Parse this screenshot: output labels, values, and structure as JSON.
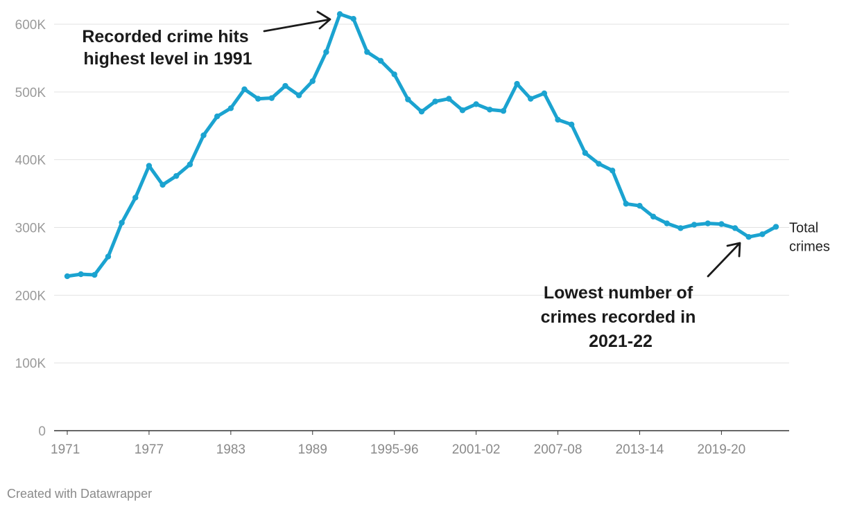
{
  "chart_data": {
    "type": "line",
    "title": "",
    "xlabel": "",
    "ylabel": "",
    "ylim": [
      0,
      600000
    ],
    "grid": true,
    "y_ticks": [
      {
        "value": 0,
        "label": "0"
      },
      {
        "value": 100000,
        "label": "100K"
      },
      {
        "value": 200000,
        "label": "200K"
      },
      {
        "value": 300000,
        "label": "300K"
      },
      {
        "value": 400000,
        "label": "400K"
      },
      {
        "value": 500000,
        "label": "500K"
      },
      {
        "value": 600000,
        "label": "600K"
      }
    ],
    "x_ticks": [
      "1971",
      "1977",
      "1983",
      "1989",
      "1995-96",
      "2001-02",
      "2007-08",
      "2013-14",
      "2019-20"
    ],
    "categories": [
      "1971",
      "1972",
      "1973",
      "1974",
      "1975",
      "1976",
      "1977",
      "1978",
      "1979",
      "1980",
      "1981",
      "1982",
      "1983",
      "1984",
      "1985",
      "1986",
      "1987",
      "1988",
      "1989",
      "1990",
      "1991",
      "1992",
      "1993",
      "1994",
      "1995-96",
      "1996-97",
      "1997-98",
      "1998-99",
      "1999-00",
      "2000-01",
      "2001-02",
      "2002-03",
      "2003-04",
      "2004-05",
      "2005-06",
      "2006-07",
      "2007-08",
      "2008-09",
      "2009-10",
      "2010-11",
      "2011-12",
      "2012-13",
      "2013-14",
      "2014-15",
      "2015-16",
      "2016-17",
      "2017-18",
      "2018-19",
      "2019-20",
      "2020-21",
      "2021-22",
      "2022-23",
      "2023-24"
    ],
    "series": [
      {
        "name": "Total crimes",
        "color": "#1ba3d0",
        "values": [
          228000,
          231000,
          230000,
          257000,
          307000,
          344000,
          391000,
          363000,
          376000,
          393000,
          436000,
          464000,
          476000,
          504000,
          490000,
          491000,
          509000,
          495000,
          516000,
          559000,
          615000,
          608000,
          559000,
          546000,
          526000,
          489000,
          471000,
          486000,
          490000,
          473000,
          482000,
          474000,
          472000,
          512000,
          490000,
          498000,
          459000,
          452000,
          410000,
          394000,
          384000,
          335000,
          332000,
          316000,
          306000,
          299000,
          304000,
          306000,
          305000,
          299000,
          286000,
          290000,
          301000
        ]
      }
    ],
    "annotations": [
      {
        "lines": [
          "Recorded crime hits",
          "highest level in 1991"
        ],
        "target": "1991"
      },
      {
        "lines": [
          "Lowest number of",
          "crimes recorded in",
          "2021-22"
        ],
        "target": "2021-22"
      }
    ]
  },
  "footer": {
    "credit": "Created with Datawrapper"
  }
}
